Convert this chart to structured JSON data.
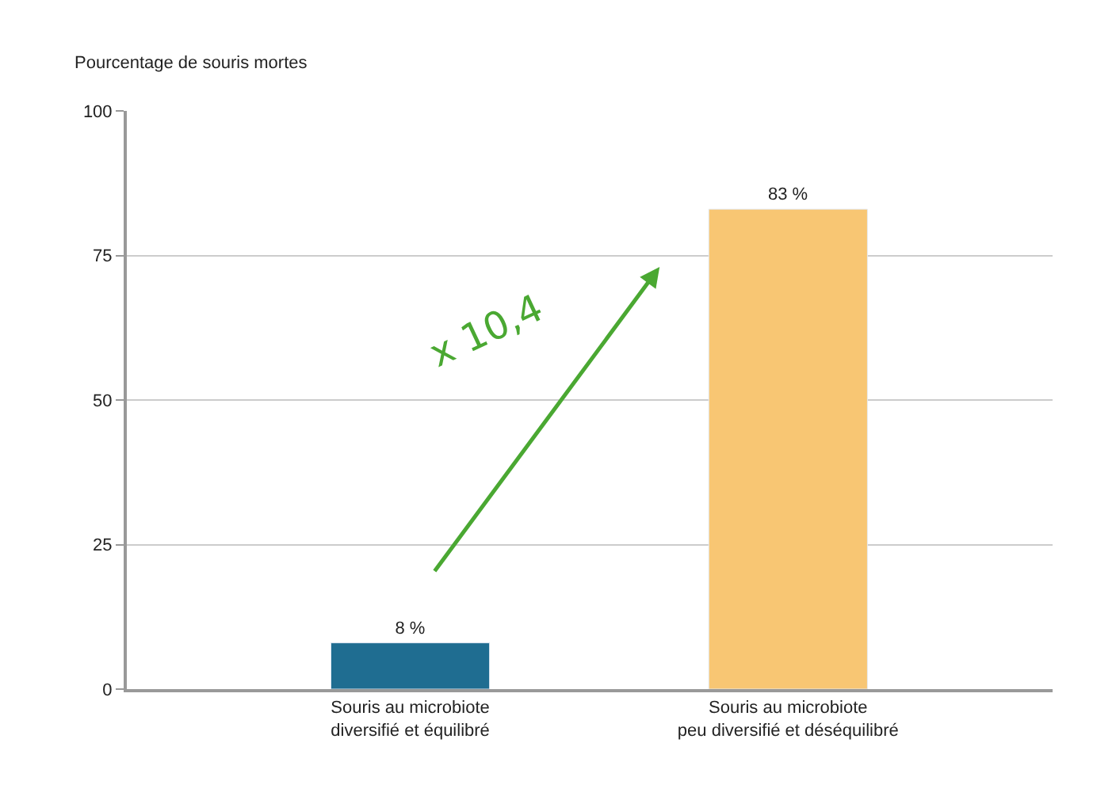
{
  "chart_data": {
    "type": "bar",
    "ylabel": "Pourcentage de souris mortes",
    "categories": [
      "Souris au microbiote\ndiversifié et équilibré",
      "Souris au microbiote\npeu diversifié et déséquilibré"
    ],
    "values": [
      8,
      83
    ],
    "colors": [
      "#1f6d91",
      "#f8c673"
    ],
    "value_labels": [
      "8 %",
      "83 %"
    ],
    "ylim": [
      0,
      100
    ],
    "yticks": [
      0,
      25,
      50,
      75,
      100
    ],
    "grid": "y",
    "annotations": [
      "x 10,4"
    ]
  }
}
